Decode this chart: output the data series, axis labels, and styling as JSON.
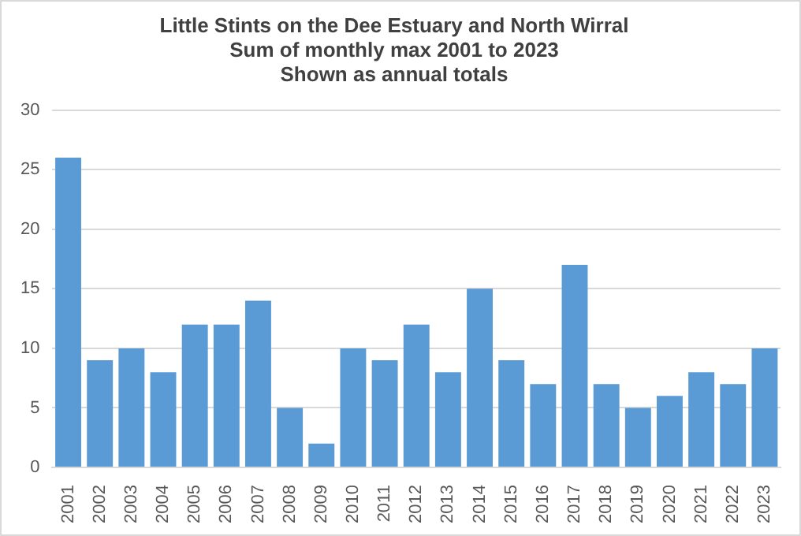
{
  "chart_data": {
    "type": "bar",
    "title": "Little Stints on the Dee Estuary and North Wirral\nSum of monthly max 2001 to 2023\nShown as annual totals",
    "categories": [
      "2001",
      "2002",
      "2003",
      "2004",
      "2005",
      "2006",
      "2007",
      "2008",
      "2009",
      "2010",
      "2011",
      "2012",
      "2013",
      "2014",
      "2015",
      "2016",
      "2017",
      "2018",
      "2019",
      "2020",
      "2021",
      "2022",
      "2023"
    ],
    "values": [
      26,
      9,
      10,
      8,
      12,
      12,
      14,
      5,
      2,
      10,
      9,
      12,
      8,
      15,
      9,
      7,
      17,
      7,
      5,
      6,
      8,
      7,
      10
    ],
    "color": "#5b9bd5",
    "ylim": [
      0,
      30
    ],
    "yticks": [
      0,
      5,
      10,
      15,
      20,
      25,
      30
    ],
    "grid": "y"
  }
}
